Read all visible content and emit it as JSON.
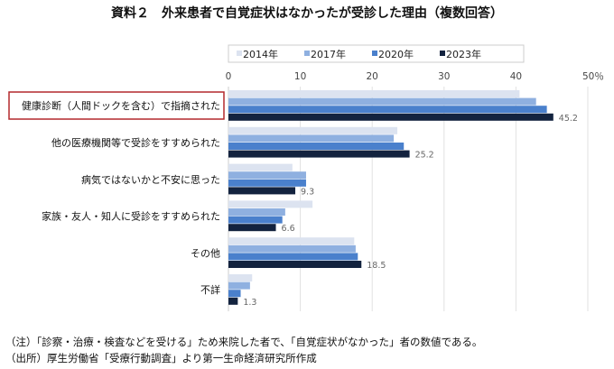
{
  "title": "資料２　外来患者で自覚症状はなかったが受診した理由（複数回答）",
  "notes": [
    "（注）「診察・治療・検査などを受ける」ため来院した者で、「自覚症状がなかった」者の数値である。",
    "（出所）厚生労働省「受療行動調査」より第一生命経済研究所作成"
  ],
  "chart_data": {
    "type": "bar",
    "orientation": "horizontal",
    "title": "資料２　外来患者で自覚症状はなかったが受診した理由（複数回答）",
    "categories": [
      "健康診断（人間ドックを含む）で指摘された",
      "他の医療機関等で受診をすすめられた",
      "病気ではないかと不安に思った",
      "家族・友人・知人に受診をすすめられた",
      "その他",
      "不詳"
    ],
    "highlighted_category": "健康診断（人間ドックを含む）で指摘された",
    "series": [
      {
        "name": "2014年",
        "color": "#dce3f0",
        "values": [
          40.5,
          23.5,
          8.9,
          11.7,
          17.5,
          3.3
        ]
      },
      {
        "name": "2017年",
        "color": "#8fb0e0",
        "values": [
          42.8,
          23.0,
          10.8,
          7.9,
          17.7,
          3.0
        ]
      },
      {
        "name": "2020年",
        "color": "#4a80cc",
        "values": [
          44.3,
          24.4,
          10.8,
          7.5,
          18.0,
          1.7
        ]
      },
      {
        "name": "2023年",
        "color": "#13233f",
        "values": [
          45.2,
          25.2,
          9.3,
          6.6,
          18.5,
          1.3
        ]
      }
    ],
    "data_labels": [
      "45.2",
      "25.2",
      "9.3",
      "6.6",
      "18.5",
      "1.3"
    ],
    "xticks": [
      "0",
      "10",
      "20",
      "30",
      "40",
      "50％"
    ],
    "xlim": [
      0,
      50
    ],
    "grid": true,
    "legend": "top",
    "xlabel": "",
    "ylabel": ""
  }
}
